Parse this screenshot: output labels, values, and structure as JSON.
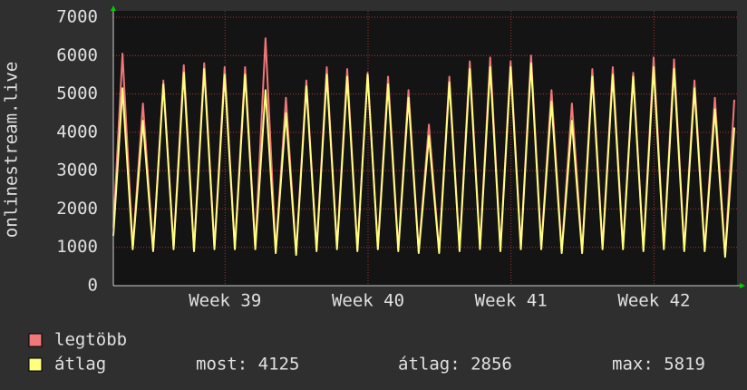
{
  "chart_data": {
    "type": "line",
    "ylabel": "onlinestream.live",
    "x": [
      0,
      0.45,
      0.95,
      1.45,
      1.95,
      2.45,
      2.95,
      3.45,
      3.95,
      4.45,
      4.95,
      5.45,
      5.95,
      6.45,
      6.95,
      7.45,
      7.95,
      8.45,
      8.95,
      9.45,
      9.95,
      10.45,
      10.95,
      11.45,
      11.95,
      12.45,
      12.95,
      13.45,
      13.95,
      14.45,
      14.95,
      15.45,
      15.95,
      16.45,
      16.95,
      17.45,
      17.95,
      18.45,
      18.95,
      19.45,
      19.95,
      20.45,
      20.95,
      21.45,
      21.95,
      22.45,
      22.95,
      23.45,
      23.95,
      24.45,
      24.95,
      25.45,
      25.95,
      26.45,
      26.95,
      27.45,
      27.95,
      28.45,
      28.95,
      29.45,
      29.95,
      30.4
    ],
    "series": [
      {
        "name": "legtöbb",
        "color": "#f07878",
        "values": [
          1500,
          6050,
          1000,
          4750,
          950,
          5350,
          1000,
          5750,
          950,
          5800,
          1000,
          5700,
          1000,
          5700,
          1000,
          6450,
          900,
          4900,
          850,
          5350,
          950,
          5700,
          1000,
          5650,
          950,
          5550,
          1000,
          5450,
          950,
          5100,
          900,
          4200,
          900,
          5450,
          950,
          5850,
          1000,
          5950,
          950,
          5850,
          1000,
          6000,
          1000,
          5100,
          900,
          4750,
          900,
          5650,
          1000,
          5700,
          1000,
          5550,
          950,
          5950,
          1000,
          5900,
          950,
          5350,
          950,
          4900,
          800,
          4850
        ]
      },
      {
        "name": "átlag",
        "color": "#ffff80",
        "values": [
          1300,
          5150,
          950,
          4300,
          900,
          5250,
          950,
          5550,
          900,
          5650,
          950,
          5500,
          950,
          5500,
          950,
          5100,
          850,
          4500,
          800,
          5200,
          900,
          5500,
          950,
          5450,
          900,
          5500,
          950,
          5250,
          900,
          4900,
          850,
          3900,
          850,
          5300,
          900,
          5650,
          950,
          5700,
          900,
          5700,
          950,
          5800,
          950,
          4800,
          850,
          4300,
          850,
          5450,
          950,
          5500,
          950,
          5450,
          900,
          5700,
          950,
          5650,
          900,
          5150,
          900,
          4600,
          750,
          4125
        ]
      }
    ],
    "xlim": [
      0,
      30.4
    ],
    "xticks": [
      {
        "value": 5.47,
        "label": "Week 39"
      },
      {
        "value": 12.47,
        "label": "Week 40"
      },
      {
        "value": 19.47,
        "label": "Week 41"
      },
      {
        "value": 26.47,
        "label": "Week 42"
      }
    ],
    "ylim": [
      0,
      7000
    ],
    "yticks": [
      0,
      1000,
      2000,
      3000,
      4000,
      5000,
      6000,
      7000
    ],
    "grid": true,
    "stats": [
      "most: 4125",
      "átlag: 2856",
      "max: 5819"
    ]
  }
}
